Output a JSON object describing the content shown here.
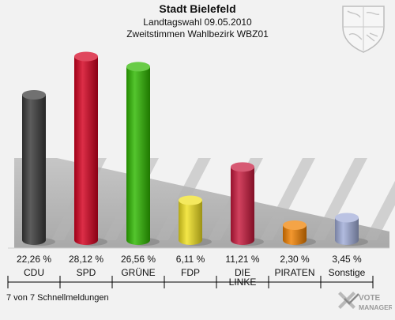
{
  "chart_data": {
    "type": "bar",
    "title": "Stadt Bielefeld",
    "subtitle_line1": "Landtagswahl 09.05.2010",
    "subtitle_line2": "Zweitstimmen Wahlbezirk WBZ01",
    "categories": [
      "CDU",
      "SPD",
      "GRÜNE",
      "FDP",
      "DIE LINKE",
      "PIRATEN",
      "Sonstige"
    ],
    "category_lines": [
      [
        "CDU"
      ],
      [
        "SPD"
      ],
      [
        "GRÜNE"
      ],
      [
        "FDP"
      ],
      [
        "DIE",
        "LINKE"
      ],
      [
        "PIRATEN"
      ],
      [
        "Sonstige"
      ]
    ],
    "values": [
      22.26,
      28.12,
      26.56,
      6.11,
      11.21,
      2.3,
      3.45
    ],
    "value_labels": [
      "22,26 %",
      "28,12 %",
      "26,56 %",
      "6,11 %",
      "11,21 %",
      "2,30 %",
      "3,45 %"
    ],
    "colors": [
      "#3a3a3a",
      "#d4001e",
      "#2fb800",
      "#f0e020",
      "#c8183c",
      "#f08000",
      "#a0acd8"
    ],
    "ylim": [
      0,
      30
    ],
    "grid": false,
    "legend": "none",
    "footer": "7 von 7 Schnellmeldungen"
  },
  "branding": {
    "logo_text": "VOTE MANAGER",
    "logo_line1": "VOTE",
    "logo_line2": "MANAGER",
    "crest_icon": "coat-of-arms-icon"
  }
}
